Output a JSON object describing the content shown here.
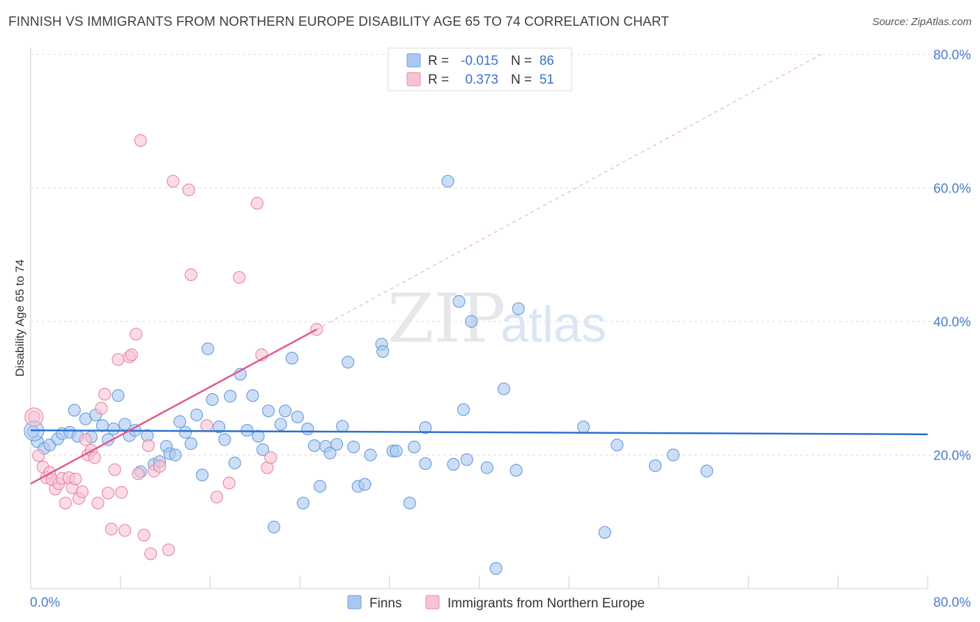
{
  "title": "FINNISH VS IMMIGRANTS FROM NORTHERN EUROPE DISABILITY AGE 65 TO 74 CORRELATION CHART",
  "source": "Source: ZipAtlas.com",
  "watermark": {
    "zip": "ZIP",
    "atlas": "atlas"
  },
  "legend_top": [
    {
      "r_label": "R =",
      "r_value": "-0.015",
      "n_label": "N =",
      "n_value": "86",
      "color": "#a9c8f0",
      "stroke": "#6f9fdc"
    },
    {
      "r_label": "R =",
      "r_value": "0.373",
      "n_label": "N =",
      "n_value": "51",
      "color": "#f8c4d3",
      "stroke": "#e88aa8"
    }
  ],
  "legend_bottom": [
    {
      "label": "Finns",
      "color": "#a9c8f0",
      "stroke": "#6f9fdc"
    },
    {
      "label": "Immigrants from Northern Europe",
      "color": "#f8c4d3",
      "stroke": "#e88aa8"
    }
  ],
  "chart_data": {
    "type": "scatter",
    "ylabel": "Disability Age 65 to 74",
    "xlim": [
      0,
      80
    ],
    "ylim": [
      0,
      80
    ],
    "x_tick_labels": [
      "0.0%",
      "80.0%"
    ],
    "y_ticks": [
      20,
      40,
      60,
      80
    ],
    "y_tick_labels": [
      "20.0%",
      "40.0%",
      "60.0%",
      "80.0%"
    ],
    "grid": true,
    "series": [
      {
        "name": "Finns",
        "color": "#6f9fdc",
        "fill": "#a9c8f0",
        "line_color": "#2a6fd0",
        "trend": {
          "x": [
            0,
            80
          ],
          "y": [
            23.7,
            23.1
          ]
        },
        "points": [
          [
            0.2,
            23.5
          ],
          [
            0.6,
            22.0
          ],
          [
            1.2,
            21.0
          ],
          [
            1.7,
            21.5
          ],
          [
            2.4,
            22.4
          ],
          [
            2.8,
            23.2
          ],
          [
            3.5,
            23.4
          ],
          [
            3.9,
            26.7
          ],
          [
            4.2,
            22.8
          ],
          [
            4.9,
            25.4
          ],
          [
            5.4,
            22.7
          ],
          [
            5.8,
            26.0
          ],
          [
            6.4,
            24.4
          ],
          [
            6.9,
            22.3
          ],
          [
            7.4,
            23.9
          ],
          [
            7.8,
            28.9
          ],
          [
            8.4,
            24.6
          ],
          [
            8.8,
            22.9
          ],
          [
            9.3,
            23.7
          ],
          [
            9.8,
            17.5
          ],
          [
            10.4,
            22.9
          ],
          [
            11.0,
            18.6
          ],
          [
            11.5,
            19.0
          ],
          [
            12.1,
            21.3
          ],
          [
            12.4,
            20.2
          ],
          [
            12.9,
            20.0
          ],
          [
            13.3,
            25.0
          ],
          [
            13.8,
            23.4
          ],
          [
            14.3,
            21.7
          ],
          [
            14.8,
            26.0
          ],
          [
            15.3,
            17.0
          ],
          [
            15.8,
            35.9
          ],
          [
            16.2,
            28.3
          ],
          [
            16.8,
            24.2
          ],
          [
            17.3,
            22.3
          ],
          [
            17.8,
            28.8
          ],
          [
            18.2,
            18.8
          ],
          [
            18.7,
            32.1
          ],
          [
            19.3,
            23.7
          ],
          [
            19.8,
            28.9
          ],
          [
            20.3,
            22.8
          ],
          [
            20.7,
            20.8
          ],
          [
            21.2,
            26.6
          ],
          [
            21.7,
            9.2
          ],
          [
            22.3,
            24.6
          ],
          [
            22.7,
            26.6
          ],
          [
            23.3,
            34.5
          ],
          [
            23.8,
            25.7
          ],
          [
            24.3,
            12.8
          ],
          [
            24.7,
            23.9
          ],
          [
            25.3,
            21.4
          ],
          [
            25.8,
            15.3
          ],
          [
            26.3,
            21.3
          ],
          [
            26.7,
            20.3
          ],
          [
            27.3,
            21.6
          ],
          [
            27.8,
            24.3
          ],
          [
            28.3,
            33.9
          ],
          [
            28.8,
            21.2
          ],
          [
            29.2,
            15.3
          ],
          [
            29.8,
            15.6
          ],
          [
            30.3,
            20.0
          ],
          [
            31.3,
            36.6
          ],
          [
            31.4,
            35.5
          ],
          [
            32.3,
            20.6
          ],
          [
            32.6,
            20.6
          ],
          [
            33.8,
            12.8
          ],
          [
            34.2,
            21.2
          ],
          [
            35.2,
            24.1
          ],
          [
            35.2,
            18.7
          ],
          [
            37.2,
            61.0
          ],
          [
            37.7,
            18.6
          ],
          [
            38.2,
            43.0
          ],
          [
            38.6,
            26.8
          ],
          [
            38.9,
            19.3
          ],
          [
            39.3,
            40.0
          ],
          [
            40.7,
            18.1
          ],
          [
            42.2,
            29.9
          ],
          [
            43.3,
            17.7
          ],
          [
            43.5,
            41.9
          ],
          [
            49.3,
            24.2
          ],
          [
            51.2,
            8.4
          ],
          [
            52.3,
            21.5
          ],
          [
            55.7,
            18.4
          ],
          [
            57.3,
            20.0
          ],
          [
            60.3,
            17.6
          ],
          [
            41.5,
            3.0
          ]
        ]
      },
      {
        "name": "Immigrants from Northern Europe",
        "color": "#e88aa8",
        "fill": "#f8c4d3",
        "line_color": "#e0588a",
        "trend": {
          "x": [
            0,
            25.5
          ],
          "y": [
            15.7,
            38.8
          ]
        },
        "trend_dashed": {
          "x": [
            25.5,
            70.5
          ],
          "y": [
            38.8,
            80.0
          ]
        },
        "points": [
          [
            0.3,
            25.7
          ],
          [
            0.7,
            19.9
          ],
          [
            1.1,
            18.2
          ],
          [
            1.4,
            16.6
          ],
          [
            1.7,
            17.4
          ],
          [
            1.9,
            16.3
          ],
          [
            2.2,
            14.9
          ],
          [
            2.5,
            15.7
          ],
          [
            2.8,
            16.5
          ],
          [
            3.1,
            12.8
          ],
          [
            3.4,
            16.6
          ],
          [
            3.7,
            15.1
          ],
          [
            4.0,
            16.4
          ],
          [
            4.3,
            13.5
          ],
          [
            4.6,
            14.5
          ],
          [
            4.9,
            22.3
          ],
          [
            5.1,
            20.0
          ],
          [
            5.4,
            20.7
          ],
          [
            5.7,
            19.6
          ],
          [
            6.0,
            12.8
          ],
          [
            6.3,
            27.0
          ],
          [
            6.6,
            29.1
          ],
          [
            6.9,
            14.3
          ],
          [
            7.2,
            8.9
          ],
          [
            7.5,
            17.8
          ],
          [
            7.8,
            34.3
          ],
          [
            8.1,
            14.4
          ],
          [
            8.4,
            8.7
          ],
          [
            8.8,
            34.7
          ],
          [
            9.0,
            35.0
          ],
          [
            9.4,
            38.1
          ],
          [
            9.6,
            17.2
          ],
          [
            9.8,
            67.1
          ],
          [
            10.1,
            8.0
          ],
          [
            10.5,
            21.4
          ],
          [
            10.7,
            5.2
          ],
          [
            11.0,
            17.6
          ],
          [
            11.5,
            18.3
          ],
          [
            12.3,
            5.8
          ],
          [
            12.7,
            61.0
          ],
          [
            14.1,
            59.7
          ],
          [
            14.3,
            47.0
          ],
          [
            15.7,
            24.4
          ],
          [
            16.6,
            13.7
          ],
          [
            17.7,
            15.8
          ],
          [
            18.6,
            46.6
          ],
          [
            20.2,
            57.7
          ],
          [
            20.6,
            35.0
          ],
          [
            21.1,
            18.1
          ],
          [
            21.4,
            19.6
          ],
          [
            25.5,
            38.8
          ]
        ]
      }
    ]
  }
}
